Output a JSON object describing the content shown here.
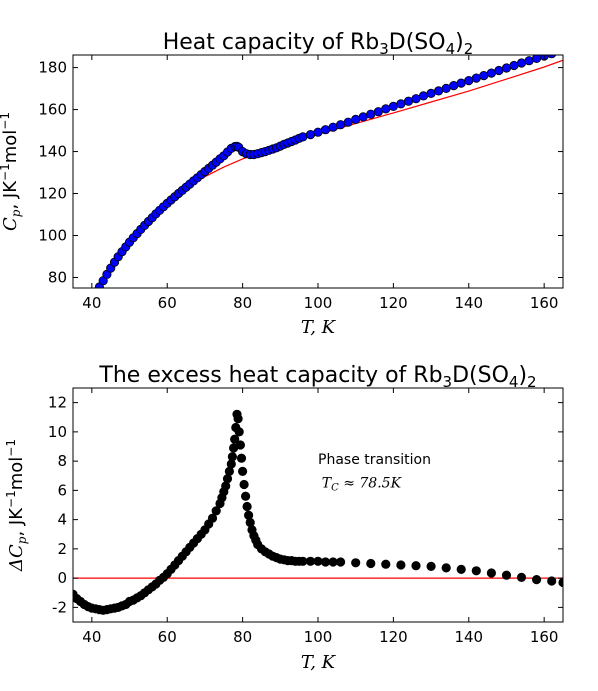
{
  "chart_data": [
    {
      "type": "scatter",
      "title": {
        "main": "Heat capacity of Rb",
        "sub1": "3",
        "mid": "D(SO",
        "sub2": "4",
        "close": ")",
        "sub3": "2"
      },
      "xlabel": "T, K",
      "ylabel": {
        "main": "C",
        "sub": "p",
        "unit": ", JK",
        "exp1": "−1",
        "unit2": "mol",
        "exp2": "−1"
      },
      "xlim": [
        35,
        165
      ],
      "ylim": [
        75,
        186
      ],
      "xticks": [
        40,
        60,
        80,
        100,
        120,
        140,
        160
      ],
      "yticks": [
        80,
        100,
        120,
        140,
        160,
        180
      ],
      "grid": false,
      "series": [
        {
          "kind": "points",
          "color": "#0000ff",
          "edge": "#000000",
          "x": [
            42,
            43,
            44,
            45,
            46,
            47,
            48,
            49,
            50,
            51,
            52,
            53,
            54,
            55,
            56,
            57,
            58,
            59,
            60,
            61,
            62,
            63,
            64,
            65,
            66,
            67,
            68,
            69,
            70,
            71,
            72,
            73,
            74,
            75,
            76,
            77,
            78,
            78.5,
            79,
            80,
            81,
            82,
            83,
            84,
            85,
            86,
            87,
            88,
            89,
            90,
            91,
            92,
            93,
            94,
            95,
            96,
            98,
            100,
            102,
            104,
            106,
            108,
            110,
            112,
            114,
            116,
            118,
            120,
            122,
            124,
            126,
            128,
            130,
            132,
            134,
            136,
            138,
            140,
            142,
            144,
            146,
            148,
            150,
            152,
            154,
            156,
            158,
            160,
            162
          ],
          "y": [
            75.5,
            78.5,
            81.5,
            84.5,
            87.3,
            89.9,
            92.3,
            94.6,
            96.8,
            98.9,
            100.9,
            102.9,
            104.8,
            106.7,
            108.5,
            110.3,
            112.0,
            113.7,
            115.3,
            116.9,
            118.5,
            120.0,
            121.5,
            123.0,
            124.5,
            126.0,
            127.5,
            129.0,
            130.5,
            132.0,
            133.5,
            135.0,
            136.5,
            138.0,
            139.8,
            141.5,
            142.4,
            142.5,
            142.0,
            140.0,
            139.0,
            138.6,
            138.6,
            139.0,
            139.5,
            140.0,
            140.6,
            141.2,
            141.8,
            142.6,
            143.4,
            144.1,
            144.8,
            145.5,
            146.3,
            147.0,
            148.1,
            149.2,
            150.4,
            151.6,
            152.8,
            154.0,
            155.3,
            156.5,
            157.8,
            159.0,
            160.3,
            161.5,
            162.7,
            164.0,
            165.2,
            166.5,
            167.7,
            168.9,
            170.1,
            171.4,
            172.6,
            173.8,
            175.0,
            176.2,
            177.4,
            178.6,
            179.8,
            181.0,
            182.2,
            183.3,
            184.4,
            185.5,
            186.6
          ]
        },
        {
          "kind": "line",
          "color": "#ff0000",
          "x": [
            40,
            45,
            50,
            55,
            60,
            65,
            70,
            75,
            80,
            85,
            90,
            95,
            100,
            110,
            120,
            130,
            140,
            150,
            160,
            165
          ],
          "y": [
            71.0,
            86.5,
            98.2,
            107.8,
            115.8,
            122.4,
            128.0,
            132.6,
            136.5,
            139.9,
            142.8,
            145.6,
            148.2,
            153.3,
            158.4,
            163.6,
            168.8,
            174.5,
            180.3,
            183.5
          ]
        }
      ]
    },
    {
      "type": "scatter",
      "title": {
        "main": "The excess heat capacity of Rb",
        "sub1": "3",
        "mid": "D(SO",
        "sub2": "4",
        "close": ")",
        "sub3": "2"
      },
      "xlabel": "T, K",
      "ylabel": {
        "main": "ΔC",
        "sub": "p",
        "unit": ", JK",
        "exp1": "−1",
        "unit2": "mol",
        "exp2": "−1"
      },
      "xlim": [
        35,
        165
      ],
      "ylim": [
        -3,
        13
      ],
      "xticks": [
        40,
        60,
        80,
        100,
        120,
        140,
        160
      ],
      "yticks": [
        -2,
        0,
        2,
        4,
        6,
        8,
        10,
        12
      ],
      "grid": false,
      "annotation": {
        "line1": "Phase transition",
        "line2_sym": "T",
        "line2_sub": "C",
        "line2_rest": " ≈ 78.5K"
      },
      "zero_line": {
        "y": 0,
        "color": "#ff0000"
      },
      "series": [
        {
          "kind": "points",
          "color": "#000000",
          "x": [
            35,
            36,
            37,
            38,
            39,
            40,
            41,
            42,
            43,
            44,
            45,
            46,
            47,
            48,
            49,
            50,
            51,
            52,
            53,
            54,
            55,
            56,
            57,
            58,
            59,
            60,
            61,
            62,
            63,
            64,
            65,
            66,
            67,
            68,
            69,
            70,
            71,
            72,
            73,
            74,
            74.5,
            75,
            75.5,
            76,
            76.5,
            77,
            77.3,
            77.6,
            77.9,
            78.2,
            78.5,
            78.8,
            79.1,
            79.4,
            79.7,
            80,
            80.4,
            80.8,
            81.2,
            81.6,
            82,
            82.5,
            83,
            83.5,
            84,
            85,
            86,
            87,
            88,
            89,
            90,
            91,
            92,
            93,
            94,
            95,
            96,
            98,
            100,
            102,
            104,
            106,
            110,
            114,
            118,
            122,
            126,
            130,
            134,
            138,
            142,
            146,
            150,
            154,
            158,
            162,
            165
          ],
          "y": [
            -1.1,
            -1.4,
            -1.6,
            -1.8,
            -1.95,
            -2.05,
            -2.1,
            -2.15,
            -2.2,
            -2.15,
            -2.1,
            -2.05,
            -2.0,
            -1.9,
            -1.8,
            -1.6,
            -1.5,
            -1.35,
            -1.2,
            -1.0,
            -0.8,
            -0.6,
            -0.4,
            -0.15,
            0.05,
            0.3,
            0.6,
            0.9,
            1.2,
            1.5,
            1.8,
            2.1,
            2.4,
            2.7,
            3.0,
            3.3,
            3.7,
            4.1,
            4.6,
            5.1,
            5.5,
            5.9,
            6.3,
            6.8,
            7.3,
            7.8,
            8.3,
            8.9,
            9.5,
            10.3,
            11.2,
            10.9,
            10.0,
            9.1,
            8.2,
            7.3,
            6.4,
            5.6,
            4.9,
            4.3,
            3.8,
            3.3,
            2.9,
            2.6,
            2.3,
            2.0,
            1.8,
            1.65,
            1.5,
            1.4,
            1.3,
            1.25,
            1.2,
            1.2,
            1.15,
            1.15,
            1.15,
            1.15,
            1.15,
            1.1,
            1.1,
            1.1,
            1.05,
            1.0,
            0.95,
            0.9,
            0.85,
            0.8,
            0.7,
            0.6,
            0.5,
            0.35,
            0.2,
            0.05,
            -0.1,
            -0.2,
            -0.3
          ]
        }
      ]
    }
  ]
}
